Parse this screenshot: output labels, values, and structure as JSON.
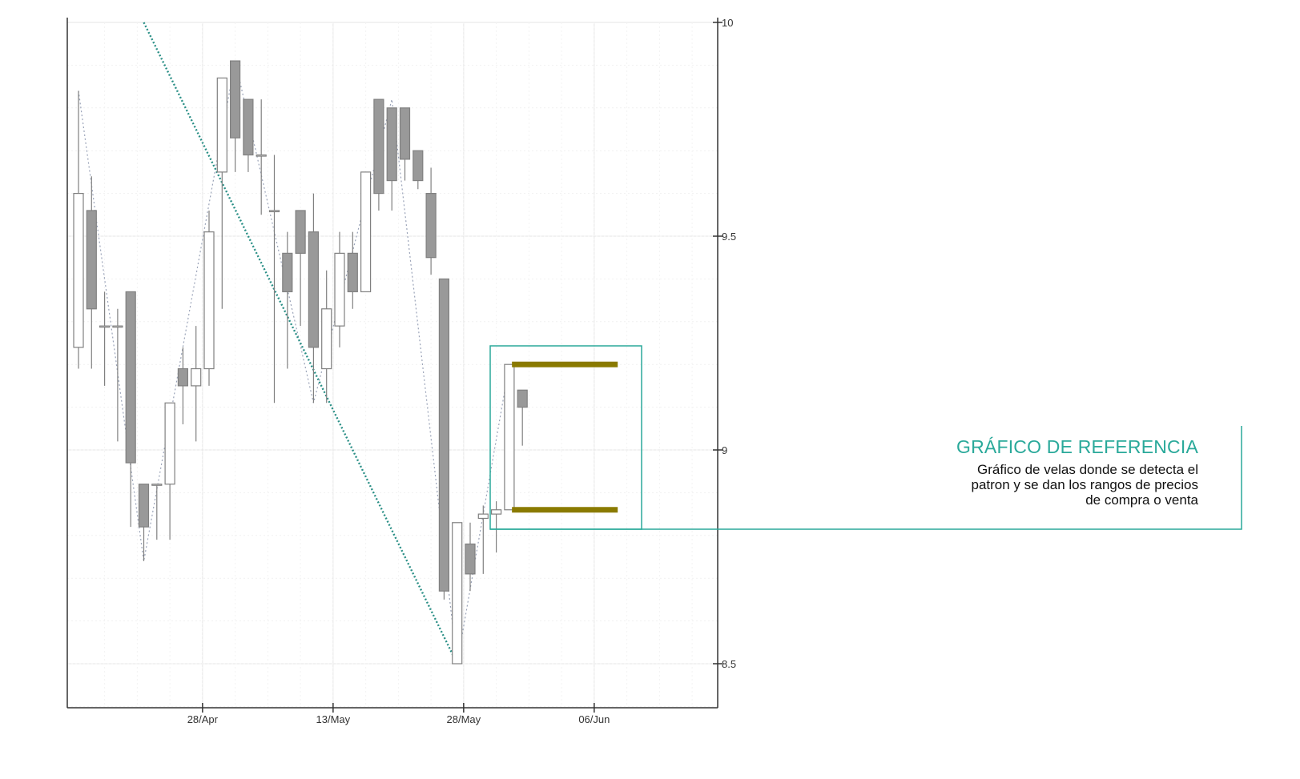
{
  "callout": {
    "title": "GRÁFICO DE REFERENCIA",
    "lines": [
      "Gráfico de velas donde se detecta el",
      "patron y se dan los rangos de precios",
      "de compra o venta"
    ]
  },
  "colors": {
    "bull_fill": "#ffffff",
    "bear_fill": "#999999",
    "candle_stroke": "#808080",
    "trendline": "#2a8f86",
    "accent": "#2aa99a",
    "range_bar": "#8a7a00",
    "grid": "#e6e6e6"
  },
  "chart_data": {
    "type": "candlestick",
    "title": "",
    "xlabel": "",
    "ylabel": "",
    "ylim": [
      8.4,
      10
    ],
    "y_ticks": [
      "10",
      "9.5",
      "9",
      "8.5"
    ],
    "y_tick_values": [
      10,
      9.5,
      9,
      8.5
    ],
    "x_ticks": [
      "28/Apr",
      "13/May",
      "28/May",
      "06/Jun"
    ],
    "x_tick_index": [
      9.5,
      19.5,
      29.5,
      39.5
    ],
    "grid": true,
    "candles": [
      {
        "i": 0,
        "o": 9.24,
        "h": 9.84,
        "l": 9.19,
        "c": 9.6
      },
      {
        "i": 1,
        "o": 9.56,
        "h": 9.64,
        "l": 9.19,
        "c": 9.33
      },
      {
        "i": 2,
        "o": 9.29,
        "h": 9.37,
        "l": 9.15,
        "c": 9.29
      },
      {
        "i": 3,
        "o": 9.29,
        "h": 9.33,
        "l": 9.02,
        "c": 9.29
      },
      {
        "i": 4,
        "o": 9.37,
        "h": 9.37,
        "l": 8.82,
        "c": 8.97
      },
      {
        "i": 5,
        "o": 8.92,
        "h": 8.92,
        "l": 8.74,
        "c": 8.82
      },
      {
        "i": 6,
        "o": 8.92,
        "h": 8.92,
        "l": 8.79,
        "c": 8.92
      },
      {
        "i": 7,
        "o": 8.92,
        "h": 9.11,
        "l": 8.79,
        "c": 9.11
      },
      {
        "i": 8,
        "o": 9.19,
        "h": 9.24,
        "l": 9.06,
        "c": 9.15
      },
      {
        "i": 9,
        "o": 9.15,
        "h": 9.29,
        "l": 9.02,
        "c": 9.19
      },
      {
        "i": 10,
        "o": 9.19,
        "h": 9.56,
        "l": 9.15,
        "c": 9.51
      },
      {
        "i": 11,
        "o": 9.65,
        "h": 9.87,
        "l": 9.33,
        "c": 9.87
      },
      {
        "i": 12,
        "o": 9.91,
        "h": 9.91,
        "l": 9.65,
        "c": 9.73
      },
      {
        "i": 13,
        "o": 9.82,
        "h": 9.82,
        "l": 9.65,
        "c": 9.69
      },
      {
        "i": 14,
        "o": 9.69,
        "h": 9.82,
        "l": 9.55,
        "c": 9.69
      },
      {
        "i": 15,
        "o": 9.56,
        "h": 9.69,
        "l": 9.11,
        "c": 9.56
      },
      {
        "i": 16,
        "o": 9.46,
        "h": 9.51,
        "l": 9.19,
        "c": 9.37
      },
      {
        "i": 17,
        "o": 9.56,
        "h": 9.56,
        "l": 9.29,
        "c": 9.46
      },
      {
        "i": 18,
        "o": 9.51,
        "h": 9.6,
        "l": 9.11,
        "c": 9.24
      },
      {
        "i": 19,
        "o": 9.19,
        "h": 9.42,
        "l": 9.11,
        "c": 9.33
      },
      {
        "i": 20,
        "o": 9.29,
        "h": 9.51,
        "l": 9.24,
        "c": 9.46
      },
      {
        "i": 21,
        "o": 9.46,
        "h": 9.51,
        "l": 9.33,
        "c": 9.37
      },
      {
        "i": 22,
        "o": 9.37,
        "h": 9.65,
        "l": 9.37,
        "c": 9.65
      },
      {
        "i": 23,
        "o": 9.82,
        "h": 9.82,
        "l": 9.56,
        "c": 9.6
      },
      {
        "i": 24,
        "o": 9.8,
        "h": 9.8,
        "l": 9.56,
        "c": 9.63
      },
      {
        "i": 25,
        "o": 9.8,
        "h": 9.8,
        "l": 9.63,
        "c": 9.68
      },
      {
        "i": 26,
        "o": 9.7,
        "h": 9.7,
        "l": 9.61,
        "c": 9.63
      },
      {
        "i": 27,
        "o": 9.6,
        "h": 9.66,
        "l": 9.41,
        "c": 9.45
      },
      {
        "i": 28,
        "o": 9.4,
        "h": 9.4,
        "l": 8.65,
        "c": 8.67
      },
      {
        "i": 29,
        "o": 8.5,
        "h": 8.83,
        "l": 8.5,
        "c": 8.83
      },
      {
        "i": 30,
        "o": 8.78,
        "h": 8.83,
        "l": 8.67,
        "c": 8.71
      },
      {
        "i": 31,
        "o": 8.84,
        "h": 8.87,
        "l": 8.71,
        "c": 8.85
      },
      {
        "i": 32,
        "o": 8.85,
        "h": 8.88,
        "l": 8.76,
        "c": 8.86
      },
      {
        "i": 33,
        "o": 8.86,
        "h": 9.2,
        "l": 8.86,
        "c": 9.2
      },
      {
        "i": 34,
        "o": 9.14,
        "h": 9.14,
        "l": 9.01,
        "c": 9.1
      }
    ],
    "zigzag": [
      {
        "i": 0,
        "y": 9.84
      },
      {
        "i": 5,
        "y": 8.74
      },
      {
        "i": 12,
        "y": 9.91
      },
      {
        "i": 18,
        "y": 9.11
      },
      {
        "i": 24,
        "y": 9.82
      },
      {
        "i": 29,
        "y": 8.5
      },
      {
        "i": 33,
        "y": 9.2
      }
    ],
    "trendline": {
      "from": {
        "i": 5,
        "y": 10.0
      },
      "to": {
        "i": 29,
        "y": 8.5
      }
    },
    "price_ranges": [
      {
        "y": 9.2,
        "from_i": 33.2,
        "to_i": 41.3
      },
      {
        "y": 8.86,
        "from_i": 33.2,
        "to_i": 41.3
      }
    ]
  }
}
